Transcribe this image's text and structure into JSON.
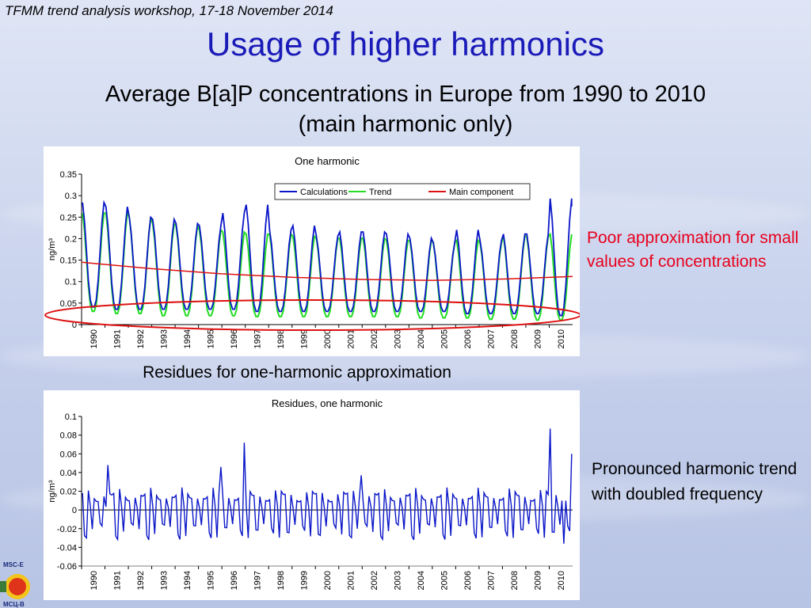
{
  "slide": {
    "header_note": "TFMM trend analysis workshop, 17-18 November 2014",
    "title": "Usage of higher harmonics",
    "subtitle_line1": "Average B[a]P concentrations in Europe from 1990 to 2010",
    "subtitle_line2": "(main harmonic only)",
    "residues_caption": "Residues for one-harmonic approximation",
    "note_poor": "Poor approximation for small values of concentrations",
    "note_pronounced": "Pronounced harmonic trend with doubled frequency",
    "logo_top": "MSC-E",
    "logo_bottom": "МСЦ-В",
    "colors": {
      "title": "#1a1ab8",
      "note_red": "#e8001c"
    }
  },
  "chart_data": [
    {
      "type": "line",
      "title": "One harmonic",
      "ylabel": "ng/m³",
      "ylim": [
        0,
        0.35
      ],
      "yticks": [
        "0",
        "0.05",
        "0.1",
        "0.15",
        "0.2",
        "0.25",
        "0.3",
        "0.35"
      ],
      "xticks": [
        "1990",
        "1991",
        "1992",
        "1993",
        "1994",
        "1995",
        "1996",
        "1997",
        "1998",
        "1999",
        "2000",
        "2001",
        "2002",
        "2003",
        "2004",
        "2005",
        "2006",
        "2007",
        "2008",
        "2009",
        "2010"
      ],
      "xlim": [
        1990,
        2011
      ],
      "legend": {
        "position": "top-right",
        "entries": [
          "Calculations",
          "Trend",
          "Main component"
        ]
      },
      "series": [
        {
          "name": "Calculations",
          "color": "#0a16c8",
          "annual_peaks": [
            0.29,
            0.28,
            0.255,
            0.25,
            0.24,
            0.235,
            0.265,
            0.285,
            0.225,
            0.235,
            0.21,
            0.22,
            0.22,
            0.215,
            0.205,
            0.195,
            0.225,
            0.2,
            0.215,
            0.215,
            0.3
          ],
          "annual_troughs": [
            0.04,
            0.035,
            0.035,
            0.035,
            0.035,
            0.035,
            0.035,
            0.03,
            0.03,
            0.03,
            0.03,
            0.03,
            0.03,
            0.03,
            0.03,
            0.03,
            0.025,
            0.025,
            0.025,
            0.025,
            0.02
          ],
          "last_value": 0.275
        },
        {
          "name": "Trend",
          "color": "#22dd22",
          "annual_peaks": [
            0.265,
            0.265,
            0.255,
            0.24,
            0.235,
            0.225,
            0.22,
            0.215,
            0.215,
            0.21,
            0.205,
            0.205,
            0.205,
            0.2,
            0.2,
            0.195,
            0.2,
            0.195,
            0.21,
            0.21,
            0.215
          ],
          "annual_troughs": [
            0.03,
            0.025,
            0.025,
            0.02,
            0.02,
            0.02,
            0.02,
            0.018,
            0.018,
            0.018,
            0.018,
            0.018,
            0.018,
            0.018,
            0.015,
            0.015,
            0.015,
            0.012,
            0.012,
            0.01,
            0.01
          ]
        },
        {
          "name": "Main component",
          "color": "#dd1111",
          "x": [
            1990,
            1993,
            1996,
            1999,
            2002,
            2005,
            2008,
            2011
          ],
          "values": [
            0.145,
            0.13,
            0.118,
            0.11,
            0.105,
            0.103,
            0.106,
            0.112
          ]
        }
      ]
    },
    {
      "type": "line",
      "title": "Residues, one harmonic",
      "ylabel": "ng/m³",
      "ylim": [
        -0.06,
        0.1
      ],
      "yticks": [
        "-0.06",
        "-0.04",
        "-0.02",
        "0",
        "0.02",
        "0.04",
        "0.06",
        "0.08",
        "0.1"
      ],
      "xticks": [
        "1990",
        "1991",
        "1992",
        "1993",
        "1994",
        "1995",
        "1996",
        "1997",
        "1998",
        "1999",
        "2000",
        "2001",
        "2002",
        "2003",
        "2004",
        "2005",
        "2006",
        "2007",
        "2008",
        "2009",
        "2010"
      ],
      "xlim": [
        1990,
        2011
      ],
      "series": [
        {
          "name": "",
          "color": "#0a16c8",
          "pattern": [
            0.018,
            -0.028,
            -0.032,
            0.024,
            0.005,
            -0.03,
            0.02,
            0.017
          ],
          "spikes": [
            [
              1991.1,
              0.048
            ],
            [
              1996.0,
              0.046
            ],
            [
              1997.0,
              0.072
            ],
            [
              2002.0,
              0.037
            ],
            [
              2010.05,
              0.087
            ],
            [
              2010.95,
              0.06
            ],
            [
              2010.6,
              -0.036
            ]
          ]
        }
      ]
    }
  ]
}
